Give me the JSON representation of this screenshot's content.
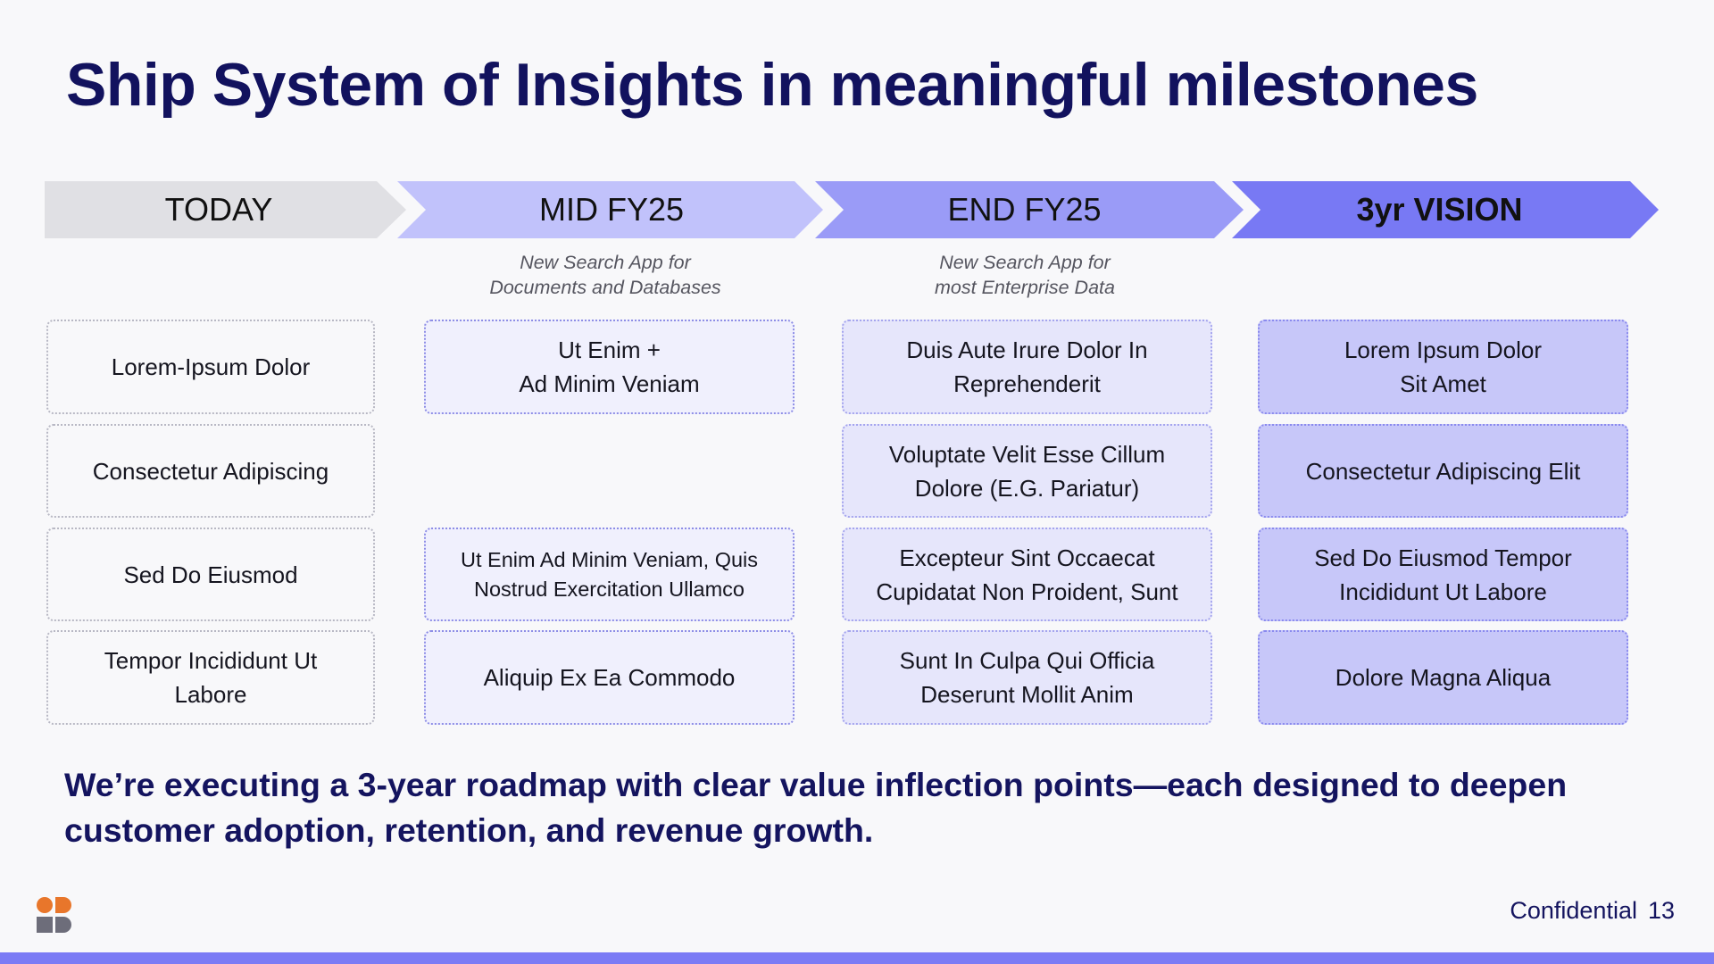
{
  "title": "Ship System of Insights in meaningful milestones",
  "colors": {
    "title": "#12125e",
    "stage_today": "#e0e0e4",
    "stage_mid": "#c1c2fb",
    "stage_end": "#9a9bf7",
    "stage_vision": "#7879f4",
    "bottom_bar": "#7b7bf5",
    "logo_orange": "#e8762b",
    "logo_gray": "#6d6d7a",
    "logo_purple": "#7b7bf5"
  },
  "stages": [
    {
      "label": "TODAY",
      "subtitle": ""
    },
    {
      "label": "MID FY25",
      "subtitle": "New Search App for\nDocuments and Databases"
    },
    {
      "label": "END FY25",
      "subtitle": "New Search App for\nmost Enterprise Data"
    },
    {
      "label": "3yr VISION",
      "subtitle": ""
    }
  ],
  "cards": {
    "today": [
      "Lorem-Ipsum Dolor",
      "Consectetur Adipiscing",
      "Sed Do Eiusmod",
      "Tempor Incididunt Ut\nLabore"
    ],
    "mid": [
      "Ut Enim +\nAd Minim Veniam",
      "Ut Enim Ad Minim Veniam, Quis\nNostrud Exercitation Ullamco",
      "Aliquip Ex Ea Commodo"
    ],
    "end": [
      "Duis Aute Irure Dolor In\nReprehenderit",
      "Voluptate Velit Esse Cillum\nDolore (E.G. Pariatur)",
      "Excepteur Sint Occaecat\nCupidatat Non Proident, Sunt",
      "Sunt In Culpa Qui Officia\nDeserunt Mollit Anim"
    ],
    "vision": [
      "Lorem Ipsum Dolor\nSit Amet",
      "Consectetur Adipiscing Elit",
      "Sed Do Eiusmod Tempor\nIncididunt Ut Labore",
      "Dolore Magna Aliqua"
    ]
  },
  "summary": "We’re executing a 3-year roadmap with clear value inflection points—each designed to deepen customer adoption, retention, and revenue growth.",
  "footer": {
    "confidential": "Confidential",
    "page_number": "13"
  }
}
